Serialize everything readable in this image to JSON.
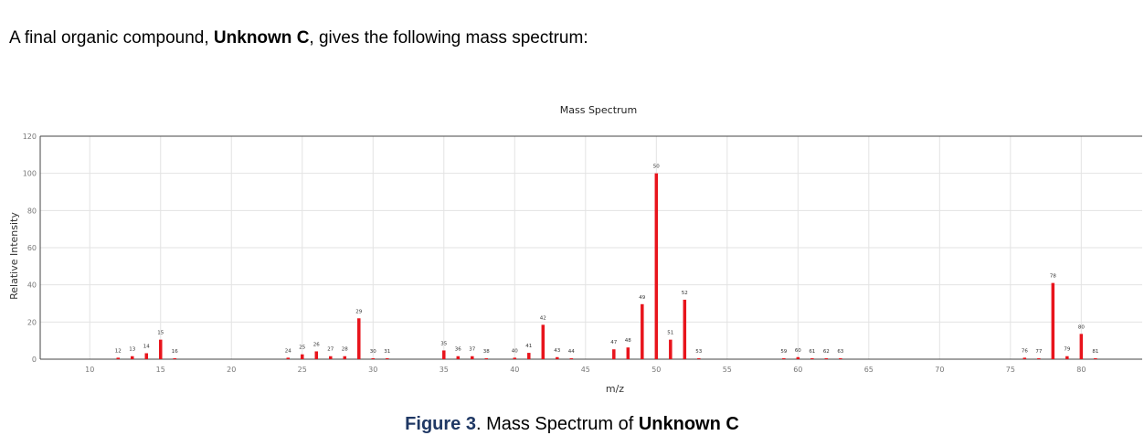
{
  "intro": {
    "prefix": "A final organic compound, ",
    "bold": "Unknown C",
    "suffix": ", gives the following mass spectrum:"
  },
  "caption": {
    "figure_label": "Figure 3",
    "middle": ". Mass Spectrum of ",
    "bold": "Unknown C"
  },
  "chart_data": {
    "type": "bar",
    "title": "Mass Spectrum",
    "xlabel": "m/z",
    "ylabel": "Relative Intensity",
    "xlim": [
      6.5,
      84.3
    ],
    "ylim": [
      0,
      120
    ],
    "xticks": [
      10,
      15,
      20,
      25,
      30,
      35,
      40,
      45,
      50,
      55,
      60,
      65,
      70,
      75,
      80
    ],
    "yticks": [
      0,
      20,
      40,
      60,
      80,
      100,
      120
    ],
    "grid": true,
    "bar_color": "#e8141c",
    "points": [
      {
        "mz": 12,
        "intensity": 0.8
      },
      {
        "mz": 13,
        "intensity": 1.6
      },
      {
        "mz": 14,
        "intensity": 3.2
      },
      {
        "mz": 15,
        "intensity": 10.5
      },
      {
        "mz": 16,
        "intensity": 0.5
      },
      {
        "mz": 24,
        "intensity": 0.8
      },
      {
        "mz": 25,
        "intensity": 2.6
      },
      {
        "mz": 26,
        "intensity": 4.2
      },
      {
        "mz": 27,
        "intensity": 1.6
      },
      {
        "mz": 28,
        "intensity": 1.6
      },
      {
        "mz": 29,
        "intensity": 22
      },
      {
        "mz": 30,
        "intensity": 0.5
      },
      {
        "mz": 31,
        "intensity": 0.5
      },
      {
        "mz": 35,
        "intensity": 4.7
      },
      {
        "mz": 36,
        "intensity": 1.6
      },
      {
        "mz": 37,
        "intensity": 1.6
      },
      {
        "mz": 38,
        "intensity": 0.5
      },
      {
        "mz": 40,
        "intensity": 0.8
      },
      {
        "mz": 41,
        "intensity": 3.4
      },
      {
        "mz": 42,
        "intensity": 18.5
      },
      {
        "mz": 43,
        "intensity": 1.1
      },
      {
        "mz": 44,
        "intensity": 0.5
      },
      {
        "mz": 47,
        "intensity": 5.3
      },
      {
        "mz": 48,
        "intensity": 6.3
      },
      {
        "mz": 49,
        "intensity": 29.6
      },
      {
        "mz": 50,
        "intensity": 100
      },
      {
        "mz": 51,
        "intensity": 10.5
      },
      {
        "mz": 52,
        "intensity": 32
      },
      {
        "mz": 53,
        "intensity": 0.5
      },
      {
        "mz": 59,
        "intensity": 0.5
      },
      {
        "mz": 60,
        "intensity": 1.1
      },
      {
        "mz": 61,
        "intensity": 0.5
      },
      {
        "mz": 62,
        "intensity": 0.5
      },
      {
        "mz": 63,
        "intensity": 0.5
      },
      {
        "mz": 76,
        "intensity": 0.8
      },
      {
        "mz": 77,
        "intensity": 0.5
      },
      {
        "mz": 78,
        "intensity": 41
      },
      {
        "mz": 79,
        "intensity": 1.6
      },
      {
        "mz": 80,
        "intensity": 13.6
      },
      {
        "mz": 81,
        "intensity": 0.5
      }
    ]
  }
}
